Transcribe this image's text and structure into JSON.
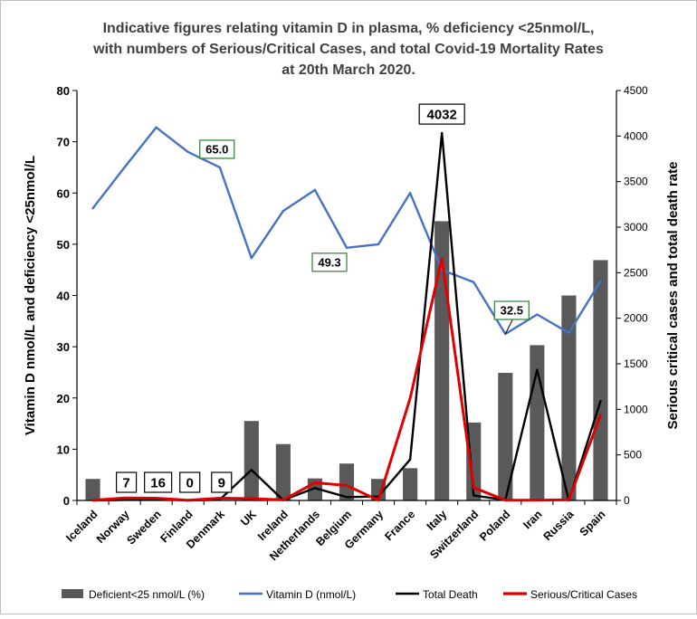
{
  "chart_data": {
    "type": "combo bar-line",
    "title_lines": [
      "Indicative figures relating vitamin D in plasma, % deficiency <25nmol/L,",
      "with numbers of Serious/Critical Cases, and total  Covid-19 Mortality Rates",
      "at 20th March 2020."
    ],
    "categories": [
      "Iceland",
      "Norway",
      "Sweden",
      "Finland",
      "Denmark",
      "UK",
      "Ireland",
      "Netherlands",
      "Belgium",
      "Germany",
      "France",
      "Italy",
      "Switzerland",
      "Poland",
      "Iran",
      "Russia",
      "Spain"
    ],
    "left_axis": {
      "label": "Vitamin D nmol/L and deficiency <25nmol/L",
      "min": 0,
      "max": 80,
      "ticks": [
        "0",
        "10",
        "20",
        "30",
        "40",
        "50",
        "60",
        "70",
        "80"
      ]
    },
    "right_axis": {
      "label": "Serious critical cases and total death rate",
      "min": 0,
      "max": 4500,
      "ticks": [
        "0",
        "500",
        "1000",
        "1500",
        "2000",
        "2500",
        "3000",
        "3500",
        "4000",
        "4500"
      ]
    },
    "series": [
      {
        "name": "Deficient<25 nmol/L (%)",
        "kind": "bar",
        "axis": "left",
        "color": "#595959",
        "values": [
          4.2,
          0,
          0,
          0,
          0,
          15.5,
          11.0,
          4.3,
          7.2,
          4.2,
          6.3,
          54.5,
          15.2,
          24.9,
          30.3,
          40.0,
          46.9
        ]
      },
      {
        "name": "Vitamin D (nmol/L)",
        "kind": "line",
        "axis": "left",
        "color": "#4472C4",
        "values": [
          57.0,
          65.0,
          72.8,
          68.0,
          65.0,
          47.3,
          56.5,
          60.6,
          49.3,
          50.0,
          60.0,
          45.0,
          42.6,
          32.5,
          36.3,
          32.7,
          42.8
        ]
      },
      {
        "name": "Total Death",
        "kind": "line",
        "axis": "right",
        "color": "#000000",
        "values": [
          0,
          7,
          16,
          0,
          9,
          335,
          3,
          136,
          37,
          44,
          450,
          4032,
          56,
          5,
          1433,
          0,
          1093
        ]
      },
      {
        "name": "Serious/Critical Cases",
        "kind": "line",
        "axis": "right",
        "color": "#E00000",
        "values": [
          3,
          27,
          25,
          2,
          25,
          20,
          6,
          195,
          164,
          2,
          1122,
          2655,
          141,
          3,
          3,
          8,
          939
        ]
      }
    ],
    "callouts": [
      {
        "text": "65.0",
        "series": "Vitamin D (nmol/L)",
        "category": "Denmark",
        "style": "green-box"
      },
      {
        "text": "49.3",
        "series": "Vitamin D (nmol/L)",
        "category": "Belgium",
        "style": "green-box"
      },
      {
        "text": "32.5",
        "series": "Vitamin D (nmol/L)",
        "category": "Poland",
        "style": "green-box"
      },
      {
        "text": "4032",
        "series": "Total Death",
        "category": "Italy",
        "style": "black-box"
      },
      {
        "text": "7",
        "series": "Total Death",
        "category": "Norway",
        "style": "black-box"
      },
      {
        "text": "16",
        "series": "Total Death",
        "category": "Sweden",
        "style": "black-box"
      },
      {
        "text": "0",
        "series": "Total Death",
        "category": "Finland",
        "style": "black-box"
      },
      {
        "text": "9",
        "series": "Total Death",
        "category": "Denmark",
        "style": "black-box"
      }
    ],
    "legend_position": "bottom",
    "grid": false
  }
}
